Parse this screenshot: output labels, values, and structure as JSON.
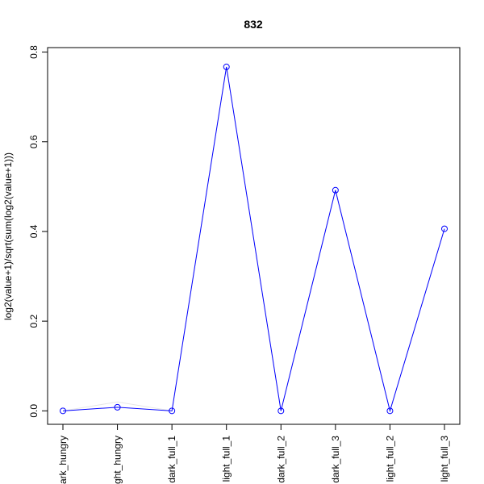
{
  "chart_data": {
    "type": "line",
    "title": "832",
    "xlabel": "",
    "ylabel": "log2(value+1)/sqrt(sum(log2(value+1)))",
    "categories": [
      "dark_hungry",
      "light_hungry",
      "dark_full_1",
      "light_full_1",
      "dark_full_2",
      "dark_full_3",
      "light_full_2",
      "light_full_3"
    ],
    "series": [
      {
        "color": "#0000ff",
        "marker": "open-circle",
        "values": [
          0.0,
          0.008,
          0.0,
          0.767,
          0.0,
          0.492,
          0.0,
          0.406
        ]
      },
      {
        "color": "#e6e6e6",
        "marker": "none",
        "values": [
          0.0,
          0.02,
          0.0,
          0.767,
          0.0,
          0.492,
          0.0,
          0.406
        ]
      }
    ],
    "yticks": [
      0.0,
      0.2,
      0.4,
      0.6,
      0.8
    ],
    "ytick_labels": [
      "0.0",
      "0.2",
      "0.4",
      "0.6",
      "0.8"
    ],
    "ylim": [
      -0.03,
      0.81
    ],
    "grid": false,
    "legend": "none"
  }
}
